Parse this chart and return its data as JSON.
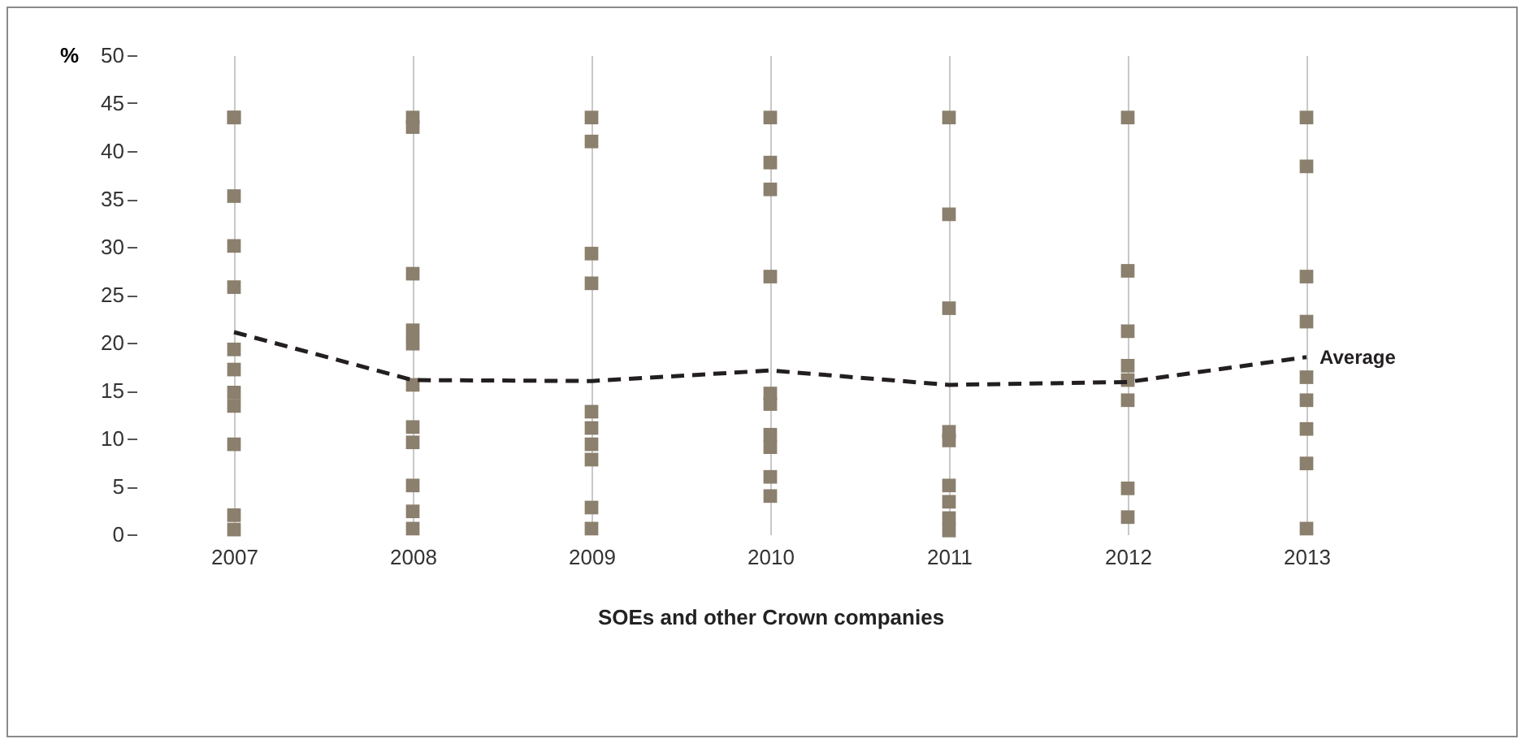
{
  "chart_data": {
    "type": "scatter",
    "xlabel": "SOEs and other Crown companies",
    "ylabel": "%",
    "xlim": [
      2007,
      2013
    ],
    "xticks": [
      2007,
      2008,
      2009,
      2010,
      2011,
      2012,
      2013
    ],
    "ylim": [
      0,
      50
    ],
    "yticks": [
      0,
      5,
      10,
      15,
      20,
      25,
      30,
      35,
      40,
      45,
      50
    ],
    "grid": "x",
    "marker": "square",
    "series": [
      {
        "color": "#8b7f6d",
        "x": [
          2007,
          2007,
          2007,
          2007,
          2007,
          2007,
          2007,
          2007,
          2007,
          2007,
          2007,
          2007,
          2008,
          2008,
          2008,
          2008,
          2008,
          2008,
          2008,
          2008,
          2008,
          2008,
          2008,
          2009,
          2009,
          2009,
          2009,
          2009,
          2009,
          2009,
          2009,
          2009,
          2009,
          2010,
          2010,
          2010,
          2010,
          2010,
          2010,
          2010,
          2010,
          2010,
          2010,
          2011,
          2011,
          2011,
          2011,
          2011,
          2011,
          2011,
          2011,
          2011,
          2012,
          2012,
          2012,
          2012,
          2012,
          2012,
          2012,
          2012,
          2013,
          2013,
          2013,
          2013,
          2013,
          2013,
          2013,
          2013,
          2013
        ],
        "values": [
          43.5,
          35.3,
          30.1,
          25.8,
          19.3,
          17.2,
          14.8,
          13.4,
          9.4,
          2,
          0.5,
          43.5,
          43.5,
          42.5,
          27.2,
          21.3,
          19.9,
          15.6,
          11.2,
          9.6,
          5.1,
          2.4,
          0.6,
          43.5,
          41,
          29.3,
          26.2,
          12.8,
          11.1,
          9.4,
          7.8,
          2.8,
          0.6,
          43.5,
          38.8,
          36,
          26.9,
          14.7,
          13.6,
          10.4,
          9.1,
          6,
          4,
          43.5,
          33.4,
          23.6,
          10.7,
          9.8,
          5.1,
          3.4,
          1.7,
          0.4,
          43.5,
          27.5,
          21.2,
          17.6,
          16.1,
          14,
          4.8,
          1.8,
          43.5,
          38.4,
          26.9,
          22.2,
          16.4,
          14,
          11,
          7.4,
          0.6
        ]
      },
      {
        "type": "line",
        "name": "Average",
        "color": "#231f20",
        "line_style": "dashed",
        "marker": "none",
        "x": [
          2007,
          2008,
          2009,
          2010,
          2011,
          2012,
          2013
        ],
        "values": [
          21.1,
          16.1,
          16,
          17.1,
          15.6,
          15.9,
          18.5
        ]
      }
    ]
  }
}
